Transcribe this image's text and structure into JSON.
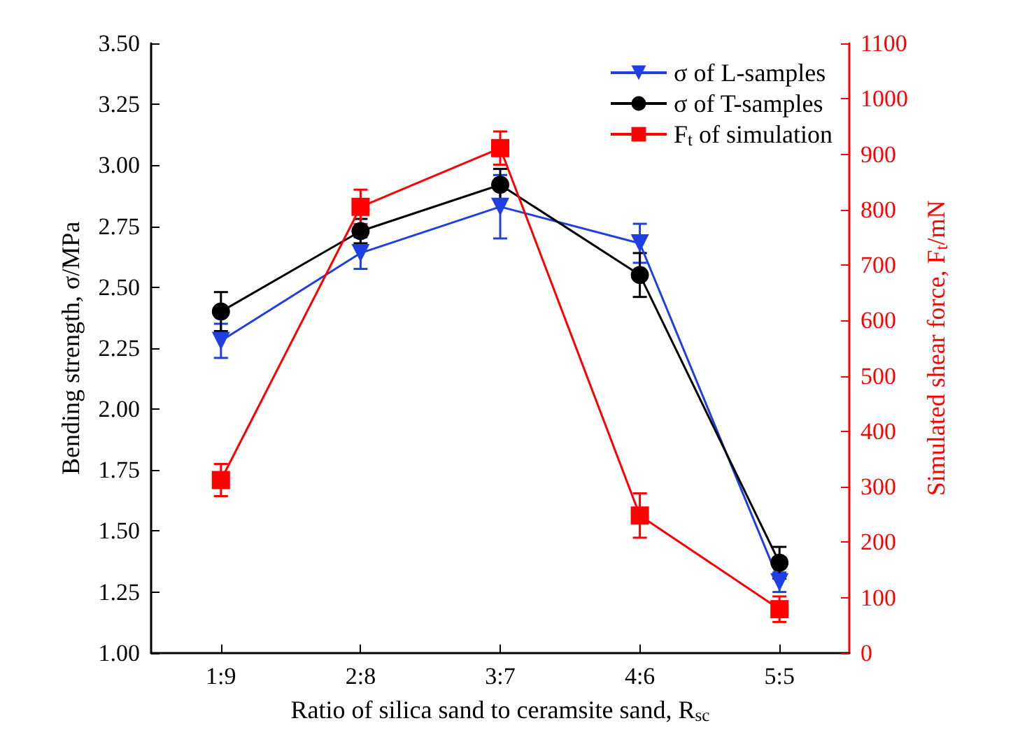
{
  "chart_data": {
    "type": "line",
    "xlabel": "Ratio of silica sand to ceramsite sand, R$_{sc}$",
    "ylabel": "Bending strength, σ/MPa",
    "y2label": "Simulated shear force, F$_{t}$/mN",
    "categories": [
      "1:9",
      "2:8",
      "3:7",
      "4:6",
      "5:5"
    ],
    "ylim": [
      1.0,
      3.5
    ],
    "yticks": [
      {
        "value": 1.0,
        "label": "1.00"
      },
      {
        "value": 1.25,
        "label": "1.25"
      },
      {
        "value": 1.5,
        "label": "1.50"
      },
      {
        "value": 1.75,
        "label": "1.75"
      },
      {
        "value": 2.0,
        "label": "2.00"
      },
      {
        "value": 2.25,
        "label": "2.25"
      },
      {
        "value": 2.5,
        "label": "2.50"
      },
      {
        "value": 2.75,
        "label": "2.75"
      },
      {
        "value": 3.0,
        "label": "3.00"
      },
      {
        "value": 3.25,
        "label": "3.25"
      },
      {
        "value": 3.5,
        "label": "3.50"
      }
    ],
    "y2lim": [
      0,
      1100
    ],
    "y2ticks": [
      0,
      100,
      200,
      300,
      400,
      500,
      600,
      700,
      800,
      900,
      1000,
      1100
    ],
    "series": [
      {
        "name": "σ of L-samples",
        "color": "#1f3fe0",
        "marker": "triangle",
        "values": [
          2.28,
          2.64,
          2.83,
          2.68,
          1.29
        ],
        "errors": [
          0.07,
          0.065,
          0.13,
          0.08,
          0.04
        ]
      },
      {
        "name": "σ of T-samples",
        "color": "#000000",
        "marker": "circle",
        "values": [
          2.4,
          2.73,
          2.92,
          2.55,
          1.37
        ],
        "errors": [
          0.08,
          0.05,
          0.065,
          0.09,
          0.065
        ]
      },
      {
        "name": "F$_{t}$ of simulation",
        "color": "#ff0000",
        "marker": "square",
        "axis": "y2",
        "values": [
          312,
          805,
          911,
          248,
          79
        ],
        "errors": [
          29,
          31,
          30,
          40,
          23
        ]
      }
    ],
    "legend": "top right",
    "grid": false
  }
}
